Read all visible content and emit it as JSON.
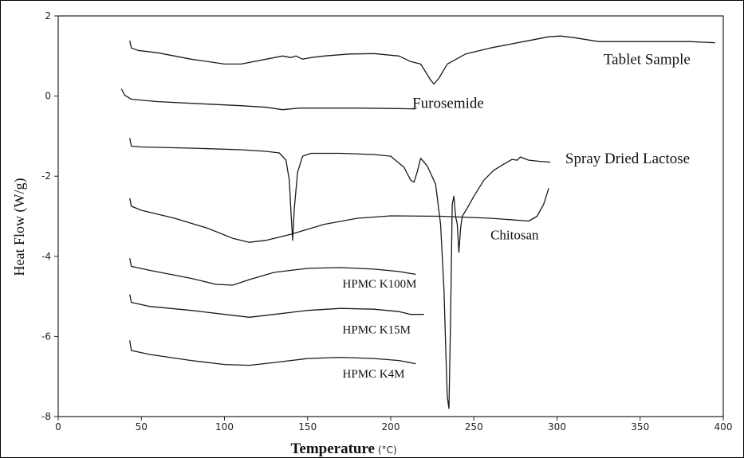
{
  "chart_data": {
    "type": "line",
    "xlabel": "Temperature",
    "xlabel_unit": "(°C)",
    "ylabel": "Heat Flow (W/g)",
    "xlim": [
      0,
      400
    ],
    "ylim": [
      -8,
      2
    ],
    "x_ticks": [
      0,
      50,
      100,
      150,
      200,
      250,
      300,
      350,
      400
    ],
    "y_ticks": [
      2,
      0,
      -2,
      -4,
      -6,
      -8
    ],
    "grid": false,
    "series": [
      {
        "name": "Tablet Sample",
        "points": [
          [
            43,
            1.38
          ],
          [
            44,
            1.2
          ],
          [
            48,
            1.14
          ],
          [
            60,
            1.08
          ],
          [
            80,
            0.92
          ],
          [
            100,
            0.8
          ],
          [
            110,
            0.8
          ],
          [
            125,
            0.92
          ],
          [
            135,
            1.0
          ],
          [
            140,
            0.96
          ],
          [
            143,
            1.0
          ],
          [
            147,
            0.92
          ],
          [
            152,
            0.96
          ],
          [
            160,
            1.0
          ],
          [
            175,
            1.05
          ],
          [
            190,
            1.06
          ],
          [
            205,
            1.0
          ],
          [
            212,
            0.86
          ],
          [
            218,
            0.8
          ],
          [
            221,
            0.6
          ],
          [
            224,
            0.4
          ],
          [
            226,
            0.3
          ],
          [
            229,
            0.45
          ],
          [
            234,
            0.8
          ],
          [
            245,
            1.05
          ],
          [
            260,
            1.2
          ],
          [
            280,
            1.36
          ],
          [
            295,
            1.48
          ],
          [
            302,
            1.5
          ],
          [
            310,
            1.46
          ],
          [
            325,
            1.36
          ],
          [
            340,
            1.36
          ],
          [
            360,
            1.36
          ],
          [
            380,
            1.36
          ],
          [
            395,
            1.33
          ]
        ]
      },
      {
        "name": "Furosemide",
        "points": [
          [
            38,
            0.18
          ],
          [
            40,
            0.02
          ],
          [
            44,
            -0.08
          ],
          [
            60,
            -0.14
          ],
          [
            90,
            -0.2
          ],
          [
            110,
            -0.24
          ],
          [
            125,
            -0.28
          ],
          [
            135,
            -0.34
          ],
          [
            145,
            -0.3
          ],
          [
            160,
            -0.3
          ],
          [
            180,
            -0.3
          ],
          [
            200,
            -0.31
          ],
          [
            215,
            -0.32
          ]
        ]
      },
      {
        "name": "Spray Dried Lactose",
        "points": [
          [
            43,
            -1.05
          ],
          [
            44,
            -1.25
          ],
          [
            50,
            -1.27
          ],
          [
            80,
            -1.3
          ],
          [
            110,
            -1.34
          ],
          [
            125,
            -1.38
          ],
          [
            133,
            -1.42
          ],
          [
            137,
            -1.6
          ],
          [
            139,
            -2.1
          ],
          [
            140,
            -2.9
          ],
          [
            141,
            -3.6
          ],
          [
            142,
            -2.8
          ],
          [
            144,
            -1.9
          ],
          [
            147,
            -1.5
          ],
          [
            152,
            -1.43
          ],
          [
            170,
            -1.43
          ],
          [
            190,
            -1.46
          ],
          [
            200,
            -1.5
          ],
          [
            208,
            -1.78
          ],
          [
            212,
            -2.1
          ],
          [
            214,
            -2.15
          ],
          [
            216,
            -1.88
          ],
          [
            218,
            -1.55
          ],
          [
            222,
            -1.75
          ],
          [
            227,
            -2.2
          ],
          [
            230,
            -3.2
          ],
          [
            232,
            -4.8
          ],
          [
            233,
            -6.2
          ],
          [
            234,
            -7.5
          ],
          [
            235,
            -7.8
          ],
          [
            236,
            -5.5
          ],
          [
            237,
            -2.7
          ],
          [
            238,
            -2.5
          ],
          [
            239,
            -3.0
          ],
          [
            240,
            -3.2
          ],
          [
            241,
            -3.9
          ],
          [
            242,
            -3.3
          ],
          [
            243,
            -3.0
          ],
          [
            246,
            -2.8
          ],
          [
            250,
            -2.5
          ],
          [
            256,
            -2.1
          ],
          [
            262,
            -1.85
          ],
          [
            268,
            -1.7
          ],
          [
            273,
            -1.58
          ],
          [
            276,
            -1.6
          ],
          [
            278,
            -1.52
          ],
          [
            283,
            -1.6
          ],
          [
            290,
            -1.63
          ],
          [
            296,
            -1.65
          ]
        ]
      },
      {
        "name": "Chitosan",
        "points": [
          [
            43,
            -2.55
          ],
          [
            44,
            -2.75
          ],
          [
            50,
            -2.85
          ],
          [
            70,
            -3.05
          ],
          [
            90,
            -3.3
          ],
          [
            105,
            -3.55
          ],
          [
            115,
            -3.65
          ],
          [
            125,
            -3.6
          ],
          [
            140,
            -3.45
          ],
          [
            160,
            -3.2
          ],
          [
            180,
            -3.05
          ],
          [
            200,
            -2.99
          ],
          [
            230,
            -3.0
          ],
          [
            260,
            -3.05
          ],
          [
            283,
            -3.12
          ],
          [
            288,
            -3.0
          ],
          [
            292,
            -2.7
          ],
          [
            295,
            -2.3
          ]
        ]
      },
      {
        "name": "HPMC K100M",
        "points": [
          [
            43,
            -4.05
          ],
          [
            44,
            -4.25
          ],
          [
            55,
            -4.35
          ],
          [
            80,
            -4.55
          ],
          [
            95,
            -4.7
          ],
          [
            105,
            -4.72
          ],
          [
            115,
            -4.58
          ],
          [
            130,
            -4.4
          ],
          [
            150,
            -4.3
          ],
          [
            170,
            -4.28
          ],
          [
            190,
            -4.32
          ],
          [
            205,
            -4.38
          ],
          [
            215,
            -4.45
          ]
        ]
      },
      {
        "name": "HPMC K15M",
        "points": [
          [
            43,
            -4.95
          ],
          [
            44,
            -5.15
          ],
          [
            55,
            -5.25
          ],
          [
            80,
            -5.35
          ],
          [
            100,
            -5.45
          ],
          [
            115,
            -5.52
          ],
          [
            130,
            -5.45
          ],
          [
            150,
            -5.35
          ],
          [
            170,
            -5.3
          ],
          [
            190,
            -5.32
          ],
          [
            205,
            -5.38
          ],
          [
            212,
            -5.45
          ],
          [
            220,
            -5.45
          ]
        ]
      },
      {
        "name": "HPMC K4M",
        "points": [
          [
            43,
            -6.1
          ],
          [
            44,
            -6.35
          ],
          [
            55,
            -6.45
          ],
          [
            80,
            -6.6
          ],
          [
            100,
            -6.7
          ],
          [
            115,
            -6.72
          ],
          [
            130,
            -6.65
          ],
          [
            150,
            -6.55
          ],
          [
            170,
            -6.52
          ],
          [
            190,
            -6.55
          ],
          [
            205,
            -6.6
          ],
          [
            215,
            -6.68
          ]
        ]
      }
    ],
    "annotations": [
      {
        "text": "Tablet Sample",
        "x": 328,
        "y": 0.8,
        "size": 19
      },
      {
        "text": "Furosemide",
        "x": 213,
        "y": -0.3,
        "size": 19
      },
      {
        "text": "Spray Dried Lactose",
        "x": 305,
        "y": -1.68,
        "size": 19
      },
      {
        "text": "Chitosan",
        "x": 260,
        "y": -3.58,
        "size": 17
      },
      {
        "text": "HPMC K100M",
        "x": 171,
        "y": -4.78,
        "size": 15
      },
      {
        "text": "HPMC K15M",
        "x": 171,
        "y": -5.92,
        "size": 15
      },
      {
        "text": "HPMC K4M",
        "x": 171,
        "y": -7.03,
        "size": 15
      }
    ]
  }
}
